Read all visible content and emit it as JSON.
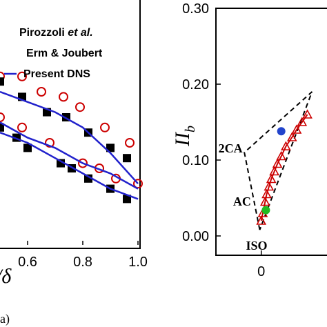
{
  "chart_data": [
    {
      "panel": "(a)",
      "type": "line",
      "xlabel": "/δ",
      "x_ticks": [
        "0.6",
        "0.8",
        "1.0"
      ],
      "xlim": [
        0.5,
        1.0
      ],
      "ylim": [
        0.0,
        1.0
      ],
      "legend": {
        "placement": "top-right",
        "entries": [
          {
            "label_main": "Pirozzoli ",
            "label_italic": "et al.",
            "marker": "circle-open",
            "color": "#cc0000"
          },
          {
            "label_main": "Erm & Joubert",
            "label_italic": "",
            "marker": "square-filled",
            "color": "#000000"
          },
          {
            "label_main": "Present DNS",
            "label_italic": "",
            "marker": "line",
            "color": "#2222cc"
          }
        ]
      },
      "series": [
        {
          "name": "Pirozzoli et al.",
          "marker": "circle-open",
          "color": "#cc0000",
          "points": [
            [
              0.5,
              0.33
            ],
            [
              0.58,
              0.33
            ],
            [
              0.65,
              0.3
            ],
            [
              0.73,
              0.29
            ],
            [
              0.79,
              0.27
            ],
            [
              0.88,
              0.23
            ],
            [
              0.97,
              0.2
            ]
          ]
        },
        {
          "name": "Pirozzoli et al.",
          "marker": "circle-open",
          "color": "#cc0000",
          "points": [
            [
              0.5,
              0.25
            ],
            [
              0.58,
              0.23
            ],
            [
              0.68,
              0.2
            ],
            [
              0.8,
              0.16
            ],
            [
              0.86,
              0.15
            ],
            [
              0.92,
              0.13
            ],
            [
              1.0,
              0.12
            ]
          ]
        },
        {
          "name": "Erm & Joubert",
          "marker": "square-filled",
          "color": "#000000",
          "points": [
            [
              0.5,
              0.32
            ],
            [
              0.58,
              0.29
            ],
            [
              0.67,
              0.26
            ],
            [
              0.74,
              0.25
            ],
            [
              0.82,
              0.22
            ],
            [
              0.9,
              0.19
            ],
            [
              0.96,
              0.17
            ]
          ]
        },
        {
          "name": "Erm & Joubert",
          "marker": "square-filled",
          "color": "#000000",
          "points": [
            [
              0.5,
              0.23
            ],
            [
              0.56,
              0.21
            ],
            [
              0.6,
              0.19
            ],
            [
              0.72,
              0.16
            ],
            [
              0.76,
              0.15
            ],
            [
              0.82,
              0.13
            ],
            [
              0.9,
              0.11
            ],
            [
              0.96,
              0.09
            ]
          ]
        },
        {
          "name": "Present DNS",
          "marker": "line",
          "color": "#2222cc",
          "points": [
            [
              0.5,
              0.3
            ],
            [
              0.6,
              0.28
            ],
            [
              0.7,
              0.26
            ],
            [
              0.8,
              0.23
            ],
            [
              0.9,
              0.18
            ],
            [
              1.0,
              0.12
            ]
          ]
        },
        {
          "name": "Present DNS",
          "marker": "line",
          "color": "#2222cc",
          "points": [
            [
              0.5,
              0.24
            ],
            [
              0.6,
              0.21
            ],
            [
              0.7,
              0.19
            ],
            [
              0.8,
              0.16
            ],
            [
              0.9,
              0.14
            ],
            [
              1.0,
              0.11
            ]
          ]
        },
        {
          "name": "Present DNS",
          "marker": "line",
          "color": "#2222cc",
          "points": [
            [
              0.5,
              0.22
            ],
            [
              0.6,
              0.2
            ],
            [
              0.7,
              0.17
            ],
            [
              0.8,
              0.14
            ],
            [
              0.9,
              0.11
            ],
            [
              1.0,
              0.09
            ]
          ]
        }
      ]
    },
    {
      "type": "line",
      "ylabel_main": "II",
      "ylabel_sub": "b",
      "y_ticks": [
        "0.00",
        "0.10",
        "0.20",
        "0.30"
      ],
      "x_ticks": [
        "0"
      ],
      "xlim": [
        -0.05,
        0.09
      ],
      "ylim": [
        0.0,
        0.3
      ],
      "triangle": {
        "color": "#000000",
        "style": "dashed",
        "vertices": {
          "iso": [
            -0.002,
            0.008
          ],
          "two_c": [
            -0.022,
            0.11
          ],
          "one_c": [
            0.066,
            0.19
          ]
        }
      },
      "annotations": [
        {
          "text": "2CA",
          "at": [
            -0.04,
            0.11
          ]
        },
        {
          "text": "AC",
          "at": [
            -0.025,
            0.04
          ]
        },
        {
          "text": "ISO",
          "at": [
            -0.006,
            -0.018
          ]
        }
      ],
      "series": [
        {
          "name": "",
          "marker": "triangle-open",
          "color": "#cc0000",
          "points": [
            [
              0.0,
              0.02
            ],
            [
              0.002,
              0.03
            ],
            [
              0.005,
              0.045
            ],
            [
              0.007,
              0.055
            ],
            [
              0.01,
              0.065
            ],
            [
              0.013,
              0.075
            ],
            [
              0.017,
              0.085
            ],
            [
              0.021,
              0.095
            ],
            [
              0.026,
              0.105
            ],
            [
              0.032,
              0.118
            ],
            [
              0.04,
              0.13
            ],
            [
              0.046,
              0.14
            ],
            [
              0.053,
              0.15
            ],
            [
              0.06,
              0.16
            ]
          ]
        },
        {
          "name": "",
          "marker": "circle-filled",
          "color": "#22bb22",
          "points": [
            [
              0.006,
              0.034
            ]
          ]
        },
        {
          "name": "",
          "marker": "circle-filled",
          "color": "#2244cc",
          "points": [
            [
              0.026,
              0.138
            ]
          ]
        }
      ]
    }
  ]
}
